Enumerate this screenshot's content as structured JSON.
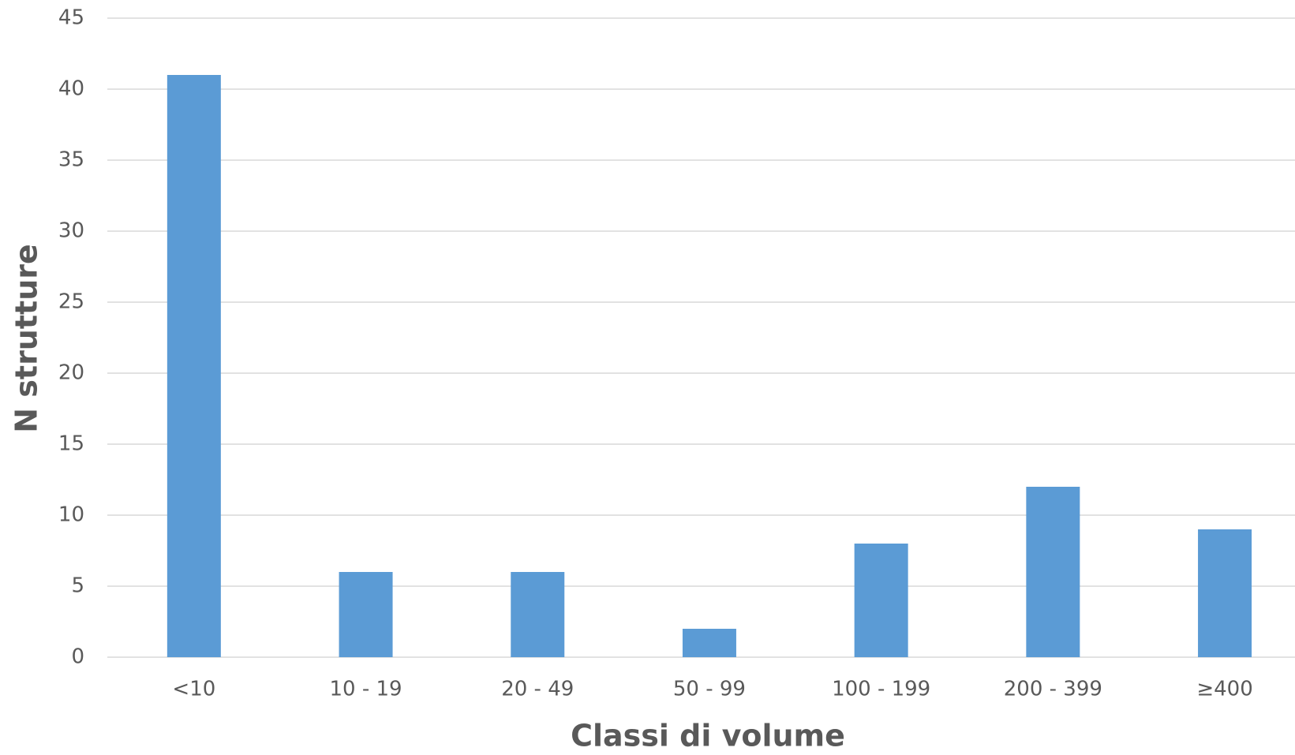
{
  "chart_data": {
    "type": "bar",
    "x_label": "Classi di volume",
    "y_label": "N strutture",
    "categories": [
      "<10",
      "10 - 19",
      "20 - 49",
      "50 - 99",
      "100 - 199",
      "200 - 399",
      "≥400"
    ],
    "values": [
      41,
      6,
      6,
      2,
      8,
      12,
      9
    ],
    "color": "#5b9bd5",
    "ylim": [
      0,
      45
    ],
    "yticks": [
      0,
      5,
      10,
      15,
      20,
      25,
      30,
      35,
      40,
      45
    ],
    "grid": true
  }
}
